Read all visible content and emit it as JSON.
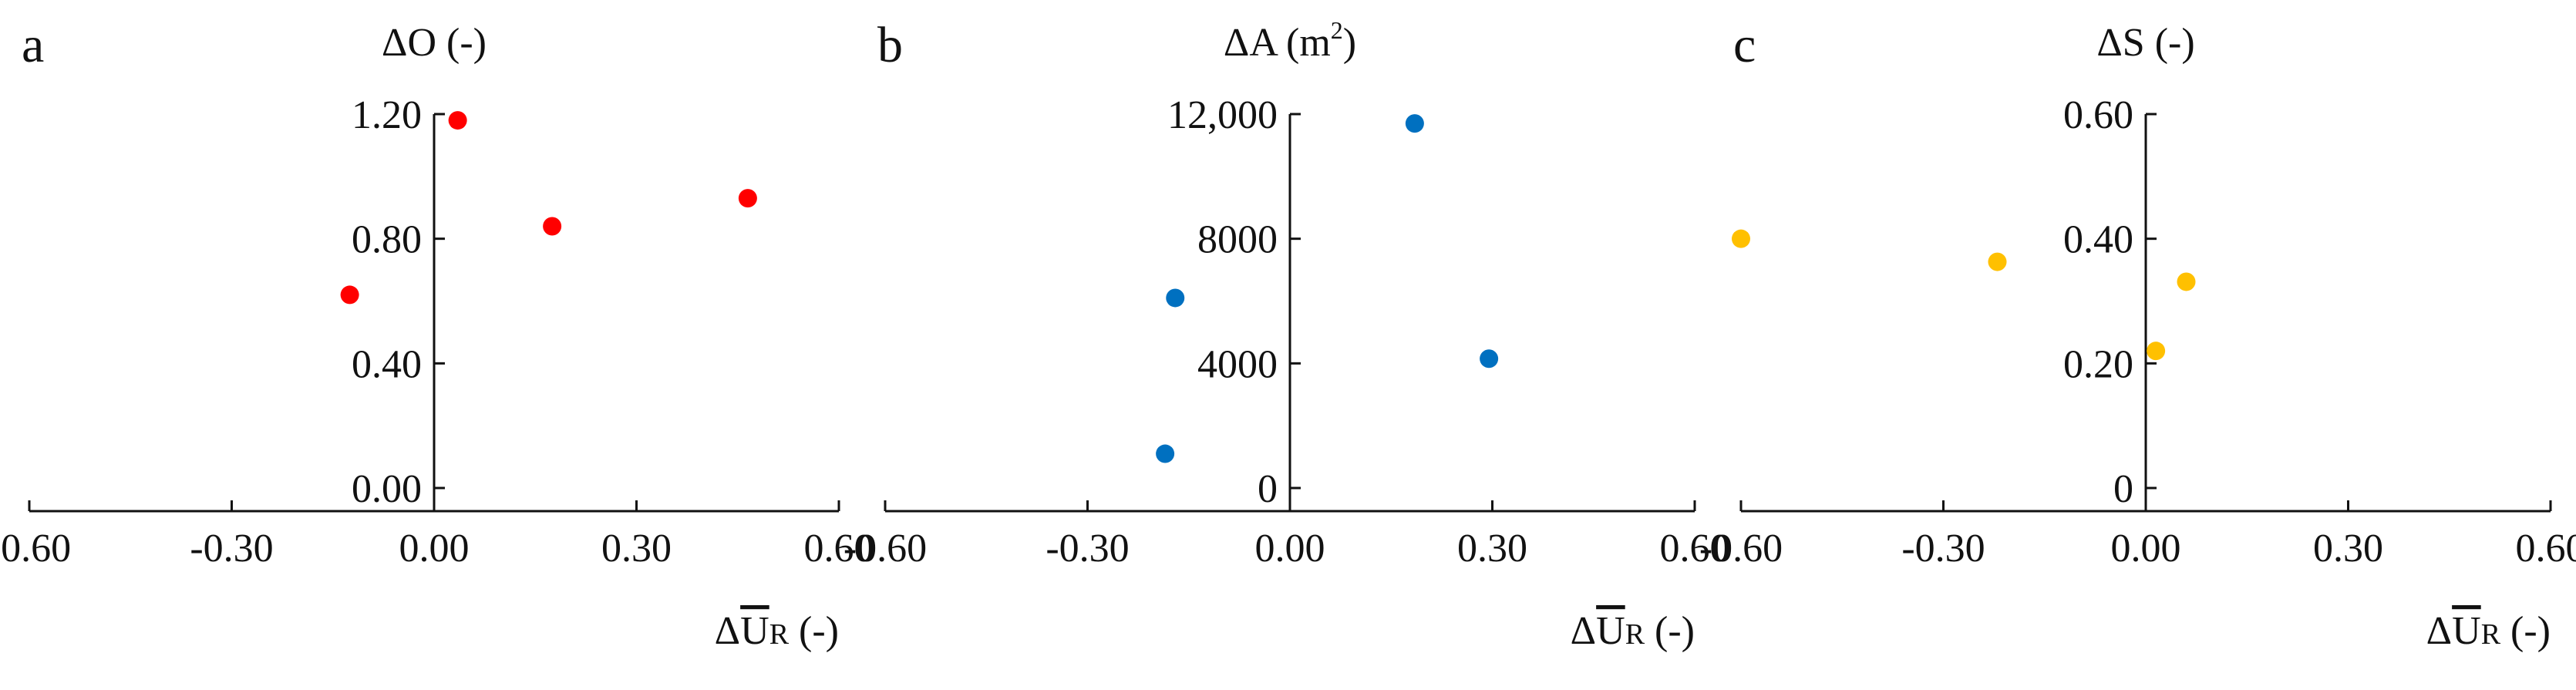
{
  "chart_data": [
    {
      "type": "scatter",
      "panel_label": "a",
      "ylabel": "ΔO (-)",
      "xlabel_main": "ΔU",
      "xlabel_sub": "R",
      "xlabel_unit": "(-)",
      "xlim": [
        -0.6,
        0.6
      ],
      "ylim": [
        0.0,
        1.2
      ],
      "xticks": [
        -0.6,
        -0.3,
        0.0,
        0.3,
        0.6
      ],
      "xtick_labels": [
        "-0.60",
        "-0.30",
        "0.00",
        "0.30",
        "0.60"
      ],
      "yticks": [
        0.0,
        0.4,
        0.8,
        1.2
      ],
      "ytick_labels": [
        "0.00",
        "0.40",
        "0.80",
        "1.20"
      ],
      "color": "#ff0000",
      "points": [
        {
          "x": -0.125,
          "y": 0.62
        },
        {
          "x": 0.035,
          "y": 1.18
        },
        {
          "x": 0.175,
          "y": 0.84
        },
        {
          "x": 0.465,
          "y": 0.93
        }
      ]
    },
    {
      "type": "scatter",
      "panel_label": "b",
      "ylabel": "ΔA (m",
      "ylabel_sup": "2",
      "ylabel_close": ")",
      "xlabel_main": "ΔU",
      "xlabel_sub": "R",
      "xlabel_unit": "(-)",
      "xlim": [
        -0.6,
        0.6
      ],
      "ylim": [
        0,
        12000
      ],
      "xticks": [
        -0.6,
        -0.3,
        0.0,
        0.3,
        0.6
      ],
      "xtick_labels": [
        "-0.60",
        "-0.30",
        "0.00",
        "0.30",
        "0.60"
      ],
      "yticks": [
        0,
        4000,
        8000,
        12000
      ],
      "ytick_labels": [
        "0",
        "4000",
        "8000",
        "12,000"
      ],
      "color": "#0070c0",
      "points": [
        {
          "x": -0.17,
          "y": 6100
        },
        {
          "x": -0.185,
          "y": 1100
        },
        {
          "x": 0.185,
          "y": 11700
        },
        {
          "x": 0.295,
          "y": 4150
        }
      ]
    },
    {
      "type": "scatter",
      "panel_label": "c",
      "ylabel": "ΔS (-)",
      "xlabel_main": "ΔU",
      "xlabel_sub": "R",
      "xlabel_unit": "(-)",
      "xlim": [
        -0.6,
        0.6
      ],
      "ylim": [
        0,
        0.6
      ],
      "xticks": [
        -0.6,
        -0.3,
        0.0,
        0.3,
        0.6
      ],
      "xtick_labels": [
        "-0.60",
        "-0.30",
        "0.00",
        "0.30",
        "0.60"
      ],
      "yticks": [
        0,
        0.2,
        0.4,
        0.6
      ],
      "ytick_labels": [
        "0",
        "0.20",
        "0.40",
        "0.60"
      ],
      "color": "#ffc000",
      "points": [
        {
          "x": -0.6,
          "y": 0.4
        },
        {
          "x": -0.22,
          "y": 0.363
        },
        {
          "x": 0.015,
          "y": 0.22
        },
        {
          "x": 0.06,
          "y": 0.331
        }
      ]
    }
  ]
}
